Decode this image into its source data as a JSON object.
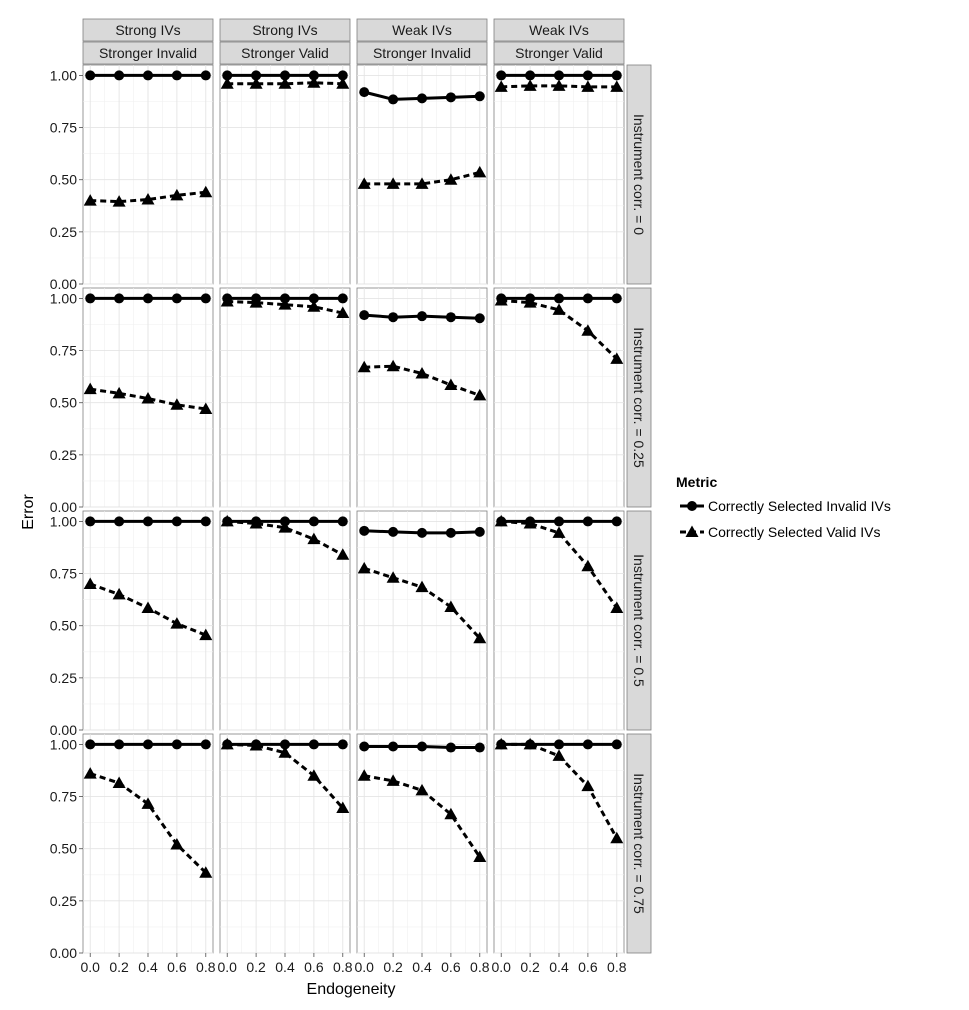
{
  "chart_data": {
    "type": "line",
    "xlabel": "Endogeneity",
    "ylabel": "Error",
    "x": [
      0.0,
      0.2,
      0.4,
      0.6,
      0.8
    ],
    "x_tick_labels": [
      "0.0",
      "0.2",
      "0.4",
      "0.6",
      "0.8"
    ],
    "ylim": [
      0,
      1.05
    ],
    "y_ticks": [
      0,
      0.25,
      0.5,
      0.75,
      1.0
    ],
    "y_tick_labels": [
      "0.00",
      "0.25",
      "0.50",
      "0.75",
      "1.00"
    ],
    "grid": true,
    "legend": {
      "title": "Metric",
      "position": "right",
      "entries": [
        "Correctly Selected Invalid IVs",
        "Correctly Selected Valid IVs"
      ]
    },
    "columns": [
      {
        "top": "Strong IVs",
        "bottom": "Stronger Invalid"
      },
      {
        "top": "Strong IVs",
        "bottom": "Stronger Valid"
      },
      {
        "top": "Weak IVs",
        "bottom": "Stronger Invalid"
      },
      {
        "top": "Weak IVs",
        "bottom": "Stronger Valid"
      }
    ],
    "rows": [
      "Instrument corr. = 0",
      "Instrument corr. = 0.25",
      "Instrument corr. = 0.5",
      "Instrument corr. = 0.75"
    ],
    "panels": [
      [
        {
          "series": [
            {
              "name": "Correctly Selected Invalid IVs",
              "values": [
                1.0,
                1.0,
                1.0,
                1.0,
                1.0
              ]
            },
            {
              "name": "Correctly Selected Valid IVs",
              "values": [
                0.4,
                0.395,
                0.405,
                0.425,
                0.44
              ]
            }
          ]
        },
        {
          "series": [
            {
              "name": "Correctly Selected Invalid IVs",
              "values": [
                1.0,
                1.0,
                1.0,
                1.0,
                1.0
              ]
            },
            {
              "name": "Correctly Selected Valid IVs",
              "values": [
                0.96,
                0.96,
                0.96,
                0.965,
                0.96
              ]
            }
          ]
        },
        {
          "series": [
            {
              "name": "Correctly Selected Invalid IVs",
              "values": [
                0.92,
                0.885,
                0.89,
                0.895,
                0.9
              ]
            },
            {
              "name": "Correctly Selected Valid IVs",
              "values": [
                0.48,
                0.48,
                0.48,
                0.5,
                0.535
              ]
            }
          ]
        },
        {
          "series": [
            {
              "name": "Correctly Selected Invalid IVs",
              "values": [
                1.0,
                1.0,
                1.0,
                1.0,
                1.0
              ]
            },
            {
              "name": "Correctly Selected Valid IVs",
              "values": [
                0.945,
                0.95,
                0.95,
                0.945,
                0.945
              ]
            }
          ]
        }
      ],
      [
        {
          "series": [
            {
              "name": "Correctly Selected Invalid IVs",
              "values": [
                1.0,
                1.0,
                1.0,
                1.0,
                1.0
              ]
            },
            {
              "name": "Correctly Selected Valid IVs",
              "values": [
                0.565,
                0.545,
                0.52,
                0.49,
                0.47
              ]
            }
          ]
        },
        {
          "series": [
            {
              "name": "Correctly Selected Invalid IVs",
              "values": [
                1.0,
                1.0,
                1.0,
                1.0,
                1.0
              ]
            },
            {
              "name": "Correctly Selected Valid IVs",
              "values": [
                0.985,
                0.98,
                0.97,
                0.96,
                0.93
              ]
            }
          ]
        },
        {
          "series": [
            {
              "name": "Correctly Selected Invalid IVs",
              "values": [
                0.92,
                0.91,
                0.915,
                0.91,
                0.905
              ]
            },
            {
              "name": "Correctly Selected Valid IVs",
              "values": [
                0.67,
                0.675,
                0.64,
                0.585,
                0.535
              ]
            }
          ]
        },
        {
          "series": [
            {
              "name": "Correctly Selected Invalid IVs",
              "values": [
                1.0,
                1.0,
                1.0,
                1.0,
                1.0
              ]
            },
            {
              "name": "Correctly Selected Valid IVs",
              "values": [
                0.99,
                0.98,
                0.945,
                0.845,
                0.71
              ]
            }
          ]
        }
      ],
      [
        {
          "series": [
            {
              "name": "Correctly Selected Invalid IVs",
              "values": [
                1.0,
                1.0,
                1.0,
                1.0,
                1.0
              ]
            },
            {
              "name": "Correctly Selected Valid IVs",
              "values": [
                0.7,
                0.65,
                0.585,
                0.51,
                0.455
              ]
            }
          ]
        },
        {
          "series": [
            {
              "name": "Correctly Selected Invalid IVs",
              "values": [
                1.0,
                1.0,
                1.0,
                1.0,
                1.0
              ]
            },
            {
              "name": "Correctly Selected Valid IVs",
              "values": [
                1.0,
                0.99,
                0.97,
                0.915,
                0.84
              ]
            }
          ]
        },
        {
          "series": [
            {
              "name": "Correctly Selected Invalid IVs",
              "values": [
                0.955,
                0.95,
                0.945,
                0.945,
                0.95
              ]
            },
            {
              "name": "Correctly Selected Valid IVs",
              "values": [
                0.775,
                0.73,
                0.685,
                0.59,
                0.44
              ]
            }
          ]
        },
        {
          "series": [
            {
              "name": "Correctly Selected Invalid IVs",
              "values": [
                1.0,
                1.0,
                1.0,
                1.0,
                1.0
              ]
            },
            {
              "name": "Correctly Selected Valid IVs",
              "values": [
                1.0,
                0.99,
                0.945,
                0.785,
                0.585
              ]
            }
          ]
        }
      ],
      [
        {
          "series": [
            {
              "name": "Correctly Selected Invalid IVs",
              "values": [
                1.0,
                1.0,
                1.0,
                1.0,
                1.0
              ]
            },
            {
              "name": "Correctly Selected Valid IVs",
              "values": [
                0.86,
                0.815,
                0.715,
                0.52,
                0.385
              ]
            }
          ]
        },
        {
          "series": [
            {
              "name": "Correctly Selected Invalid IVs",
              "values": [
                1.0,
                1.0,
                1.0,
                1.0,
                1.0
              ]
            },
            {
              "name": "Correctly Selected Valid IVs",
              "values": [
                1.0,
                0.995,
                0.96,
                0.85,
                0.695
              ]
            }
          ]
        },
        {
          "series": [
            {
              "name": "Correctly Selected Invalid IVs",
              "values": [
                0.99,
                0.99,
                0.99,
                0.985,
                0.985
              ]
            },
            {
              "name": "Correctly Selected Valid IVs",
              "values": [
                0.85,
                0.825,
                0.78,
                0.665,
                0.46
              ]
            }
          ]
        },
        {
          "series": [
            {
              "name": "Correctly Selected Invalid IVs",
              "values": [
                1.0,
                1.0,
                1.0,
                1.0,
                1.0
              ]
            },
            {
              "name": "Correctly Selected Valid IVs",
              "values": [
                1.0,
                1.0,
                0.945,
                0.8,
                0.55
              ]
            }
          ]
        }
      ]
    ]
  }
}
